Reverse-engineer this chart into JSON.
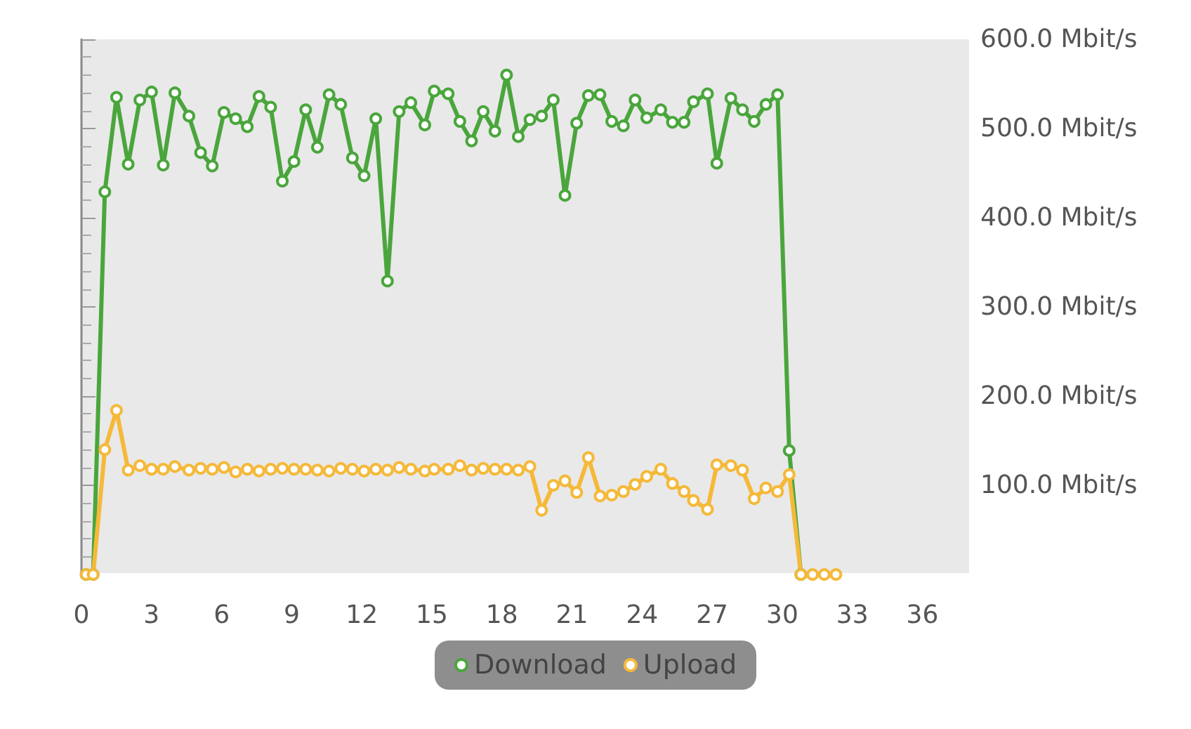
{
  "chart_data": {
    "type": "line",
    "x": [
      0.2,
      0.5,
      1.0,
      1.5,
      2.0,
      2.5,
      3.0,
      3.5,
      4.0,
      4.6,
      5.1,
      5.6,
      6.1,
      6.6,
      7.1,
      7.6,
      8.1,
      8.6,
      9.1,
      9.6,
      10.1,
      10.6,
      11.1,
      11.6,
      12.1,
      12.6,
      13.1,
      13.6,
      14.1,
      14.7,
      15.1,
      15.7,
      16.2,
      16.7,
      17.2,
      17.7,
      18.2,
      18.7,
      19.2,
      19.7,
      20.2,
      20.7,
      21.2,
      21.7,
      22.2,
      22.7,
      23.2,
      23.7,
      24.2,
      24.8,
      25.3,
      25.8,
      26.2,
      26.8,
      27.2,
      27.8,
      28.3,
      28.8,
      29.3,
      29.8,
      30.3,
      30.8,
      31.3,
      31.8,
      32.3
    ],
    "series": [
      {
        "name": "Download",
        "color": "#4aa63c",
        "values": [
          0,
          0,
          429,
          535,
          460,
          532,
          541,
          459,
          540,
          514,
          473,
          458,
          518,
          511,
          502,
          536,
          524,
          441,
          463,
          521,
          479,
          538,
          527,
          467,
          447,
          511,
          329,
          519,
          529,
          504,
          542,
          539,
          508,
          486,
          519,
          497,
          560,
          491,
          510,
          514,
          532,
          425,
          506,
          537,
          538,
          508,
          503,
          532,
          512,
          521,
          507,
          507,
          530,
          539,
          461,
          534,
          521,
          508,
          527,
          538,
          139,
          0,
          null,
          null,
          null
        ]
      },
      {
        "name": "Upload",
        "color": "#f5b93a",
        "values": [
          0,
          0,
          140,
          184,
          117,
          122,
          118,
          118,
          121,
          117,
          119,
          118,
          120,
          115,
          118,
          116,
          118,
          119,
          118,
          118,
          117,
          116,
          119,
          118,
          116,
          118,
          117,
          120,
          118,
          116,
          118,
          118,
          122,
          117,
          119,
          118,
          118,
          117,
          121,
          72,
          100,
          105,
          92,
          131,
          88,
          89,
          93,
          101,
          110,
          118,
          102,
          93,
          83,
          73,
          123,
          122,
          117,
          85,
          97,
          93,
          112,
          0,
          0,
          0,
          0
        ]
      }
    ],
    "xlim": [
      0,
      38
    ],
    "xticks": [
      0,
      3,
      6,
      9,
      12,
      15,
      18,
      21,
      24,
      27,
      30,
      33,
      36
    ],
    "ylim": [
      0,
      600
    ],
    "yticks": [
      {
        "value": 100,
        "label": "100.0 Mbit/s"
      },
      {
        "value": 200,
        "label": "200.0 Mbit/s"
      },
      {
        "value": 300,
        "label": "300.0 Mbit/s"
      },
      {
        "value": 400,
        "label": "400.0 Mbit/s"
      },
      {
        "value": 500,
        "label": "500.0 Mbit/s"
      },
      {
        "value": 600,
        "label": "600.0 Mbit/s"
      }
    ],
    "grid": false,
    "legend": "bottom",
    "marker": "circle",
    "line_style": "solid"
  }
}
